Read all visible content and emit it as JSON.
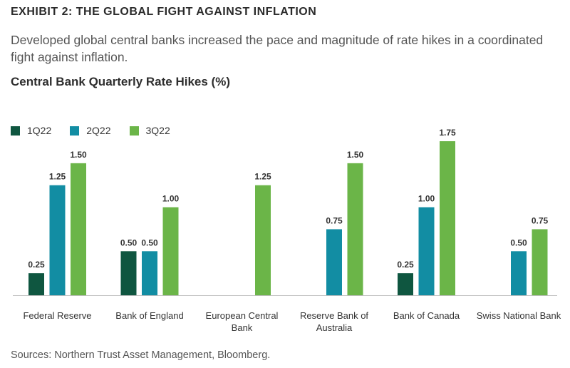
{
  "header": {
    "exhibit": "EXHIBIT 2: THE GLOBAL FIGHT AGAINST INFLATION",
    "subtitle": "Developed global central banks increased the pace and magnitude of rate hikes in a coordinated fight against inflation.",
    "source": "Sources: Northern Trust Asset Management, Bloomberg."
  },
  "colors": {
    "1Q22": "#0f5640",
    "2Q22": "#128da3",
    "3Q22": "#6bb548"
  },
  "chart_data": {
    "type": "bar",
    "title": "Central Bank Quarterly Rate Hikes (%)",
    "xlabel": "",
    "ylabel": "",
    "ylim": [
      0,
      1.75
    ],
    "grid": false,
    "legend": "top-left",
    "categories": [
      [
        "Federal Reserve"
      ],
      [
        "Bank of England"
      ],
      [
        "European Central",
        "Bank"
      ],
      [
        "Reserve Bank of",
        "Australia"
      ],
      [
        "Bank of Canada"
      ],
      [
        "Swiss National Bank"
      ]
    ],
    "series": [
      {
        "name": "1Q22",
        "values": [
          0.25,
          0.5,
          null,
          null,
          0.25,
          null
        ],
        "labels": [
          "0.25",
          "0.50",
          "",
          "",
          "0.25",
          ""
        ]
      },
      {
        "name": "2Q22",
        "values": [
          1.25,
          0.5,
          null,
          0.75,
          1.0,
          0.5
        ],
        "labels": [
          "1.25",
          "0.50",
          "",
          "0.75",
          "1.00",
          "0.50"
        ]
      },
      {
        "name": "3Q22",
        "values": [
          1.5,
          1.0,
          1.25,
          1.5,
          1.75,
          0.75
        ],
        "labels": [
          "1.50",
          "1.00",
          "1.25",
          "1.50",
          "1.75",
          "0.75"
        ]
      }
    ]
  }
}
